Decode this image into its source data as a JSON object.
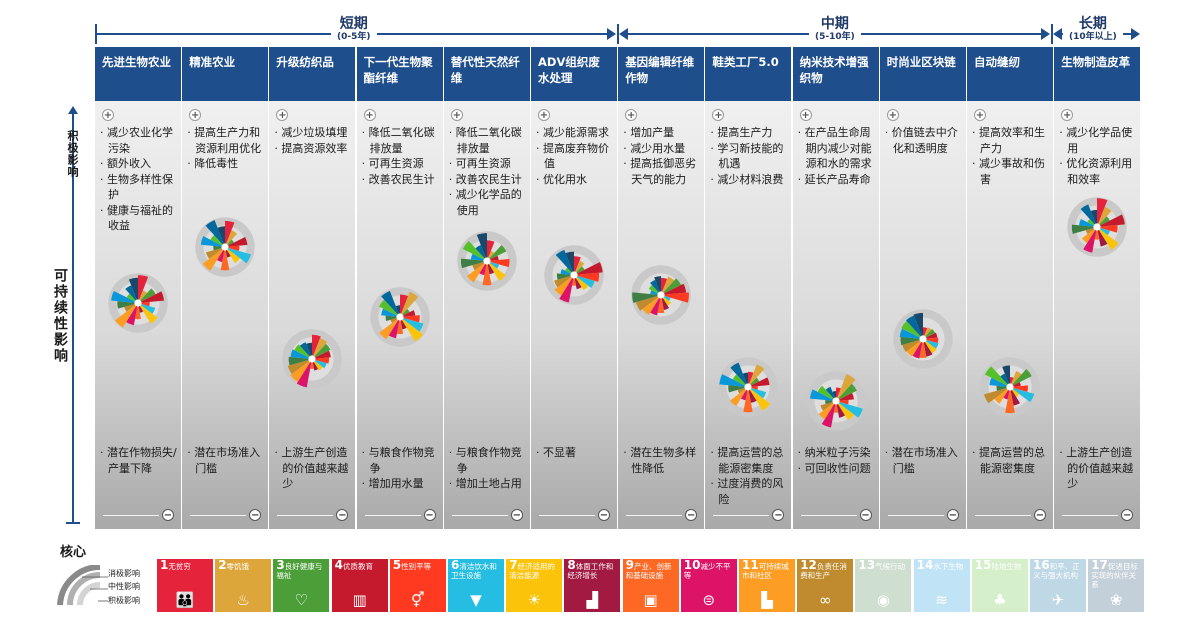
{
  "timeline": {
    "short": {
      "title": "短期",
      "sub": "(0-5年)"
    },
    "mid": {
      "title": "中期",
      "sub": "(5-10年)"
    },
    "long": {
      "title": "长期",
      "sub": "(10年以上)"
    }
  },
  "axis": {
    "positive": "积极影响",
    "main": "可持续性影响",
    "core": "核心"
  },
  "columns": [
    {
      "title": "先进生物农业",
      "positive": [
        "减少农业化学污染",
        "额外收入",
        "生物多样性保护",
        "健康与福祉的收益"
      ],
      "negative": [
        "潜在作物损失/产量下降"
      ]
    },
    {
      "title": "精准农业",
      "positive": [
        "提高生产力和资源利用优化",
        "降低毒性"
      ],
      "negative": [
        "潜在市场准入门槛"
      ]
    },
    {
      "title": "升级纺织品",
      "positive": [
        "减少垃圾填埋",
        "提高资源效率"
      ],
      "negative": [
        "上游生产创造的价值越来越少"
      ]
    },
    {
      "title": "下一代生物聚酯纤维",
      "positive": [
        "降低二氧化碳排放量",
        "可再生资源",
        "改善农民生计"
      ],
      "negative": [
        "与粮食作物竞争",
        "增加用水量"
      ]
    },
    {
      "title": "替代性天然纤维",
      "positive": [
        "降低二氧化碳排放量",
        "可再生资源",
        "改善农民生计",
        "减少化学品的使用"
      ],
      "negative": [
        "与粮食作物竞争",
        "增加土地占用"
      ]
    },
    {
      "title": "ADV组织废水处理",
      "positive": [
        "减少能源需求",
        "提高废弃物价值",
        "优化用水"
      ],
      "negative": [
        "不显著"
      ]
    },
    {
      "title": "基因编辑纤维作物",
      "positive": [
        "增加产量",
        "减少用水量",
        "提高抵御恶劣天气的能力"
      ],
      "negative": [
        "潜在生物多样性降低"
      ]
    },
    {
      "title": "鞋类工厂5.0",
      "positive": [
        "提高生产力",
        "学习新技能的机遇",
        "减少材料浪费"
      ],
      "negative": [
        "提高运营的总能源密集度",
        "过度消费的风险"
      ]
    },
    {
      "title": "纳米技术增强织物",
      "positive": [
        "在产品生命周期内减少对能源和水的需求",
        "延长产品寿命"
      ],
      "negative": [
        "纳米粒子污染",
        "可回收性问题"
      ]
    },
    {
      "title": "时尚业区块链",
      "positive": [
        "价值链去中介化和透明度"
      ],
      "negative": [
        "潜在市场准入门槛"
      ]
    },
    {
      "title": "自动缝纫",
      "positive": [
        "提高效率和生产力",
        "减少事故和伤害"
      ],
      "negative": [
        "提高运营的总能源密集度"
      ]
    },
    {
      "title": "生物制造皮革",
      "positive": [
        "减少化学品使用",
        "优化资源利用和效率"
      ],
      "negative": [
        "上游生产创造的价值越来越少"
      ]
    }
  ],
  "impact_levels": [
    0.55,
    0.75,
    0.35,
    0.5,
    0.7,
    0.65,
    0.58,
    0.25,
    0.2,
    0.42,
    0.25,
    0.82
  ],
  "legend": {
    "negative": "消极影响",
    "medium": "中性影响",
    "positive": "积极影响"
  },
  "sdgs": [
    {
      "n": "1",
      "label": "无贫穷",
      "color": "#e5243b",
      "icon": "people-icon",
      "glyph": "👪"
    },
    {
      "n": "2",
      "label": "零饥饿",
      "color": "#dda63a",
      "icon": "bowl-icon",
      "glyph": "♨"
    },
    {
      "n": "3",
      "label": "良好健康与福祉",
      "color": "#4c9f38",
      "icon": "heartbeat-icon",
      "glyph": "♡"
    },
    {
      "n": "4",
      "label": "优质教育",
      "color": "#c5192d",
      "icon": "book-icon",
      "glyph": "▥"
    },
    {
      "n": "5",
      "label": "性别平等",
      "color": "#ff3a21",
      "icon": "gender-icon",
      "glyph": "⚥"
    },
    {
      "n": "6",
      "label": "清洁饮水和卫生设施",
      "color": "#26bde2",
      "icon": "water-icon",
      "glyph": "▼"
    },
    {
      "n": "7",
      "label": "经济适用的清洁能源",
      "color": "#fcc30b",
      "icon": "sun-icon",
      "glyph": "☀"
    },
    {
      "n": "8",
      "label": "体面工作和经济增长",
      "color": "#a21942",
      "icon": "growth-icon",
      "glyph": "▟"
    },
    {
      "n": "9",
      "label": "产业、创新和基础设施",
      "color": "#fd6925",
      "icon": "cubes-icon",
      "glyph": "▣"
    },
    {
      "n": "10",
      "label": "减少不平等",
      "color": "#dd1367",
      "icon": "equal-icon",
      "glyph": "⊜"
    },
    {
      "n": "11",
      "label": "可持续城市和社区",
      "color": "#fd9d24",
      "icon": "city-icon",
      "glyph": "▙"
    },
    {
      "n": "12",
      "label": "负责任消费和生产",
      "color": "#bf8b2e",
      "icon": "infinity-icon",
      "glyph": "∞"
    },
    {
      "n": "13",
      "label": "气候行动",
      "color": "#3f7e44",
      "icon": "eye-icon",
      "glyph": "◉"
    },
    {
      "n": "14",
      "label": "水下生物",
      "color": "#0a97d9",
      "icon": "fish-icon",
      "glyph": "≋"
    },
    {
      "n": "15",
      "label": "陆地生物",
      "color": "#56c02b",
      "icon": "tree-icon",
      "glyph": "♣"
    },
    {
      "n": "16",
      "label": "和平、正义与强大机构",
      "color": "#00689d",
      "icon": "dove-icon",
      "glyph": "✈"
    },
    {
      "n": "17",
      "label": "促进目标实现的伙伴关系",
      "color": "#19486a",
      "icon": "flower-icon",
      "glyph": "❀"
    }
  ]
}
